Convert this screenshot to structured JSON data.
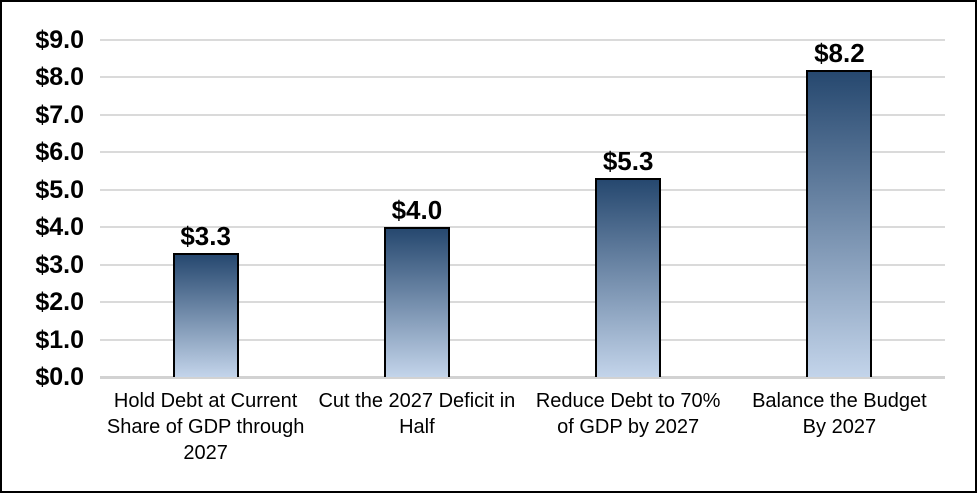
{
  "chart_data": {
    "type": "bar",
    "categories": [
      "Hold Debt at Current Share of GDP through 2027",
      "Cut the 2027 Deficit in Half",
      "Reduce Debt to 70% of GDP by 2027",
      "Balance the Budget By 2027"
    ],
    "values": [
      3.3,
      4.0,
      5.3,
      8.2
    ],
    "data_labels": [
      "$3.3",
      "$4.0",
      "$5.3",
      "$8.2"
    ],
    "title": "",
    "xlabel": "",
    "ylabel": "",
    "ylim": [
      0,
      9
    ],
    "y_tick_values": [
      9,
      8,
      7,
      6,
      5,
      4,
      3,
      2,
      1,
      0
    ],
    "y_tick_labels": [
      "$9.0",
      "$8.0",
      "$7.0",
      "$6.0",
      "$5.0",
      "$4.0",
      "$3.0",
      "$2.0",
      "$1.0",
      "$0.0"
    ],
    "grid": true,
    "legend": false,
    "colors": {
      "bar_gradient_top": "#26486f",
      "bar_gradient_bottom": "#c3d4ea",
      "bar_border": "#000000",
      "gridline": "#dadada",
      "axis_line": "#d2d2d2",
      "text": "#000000",
      "background": "#ffffff",
      "frame_border": "#000000"
    }
  }
}
